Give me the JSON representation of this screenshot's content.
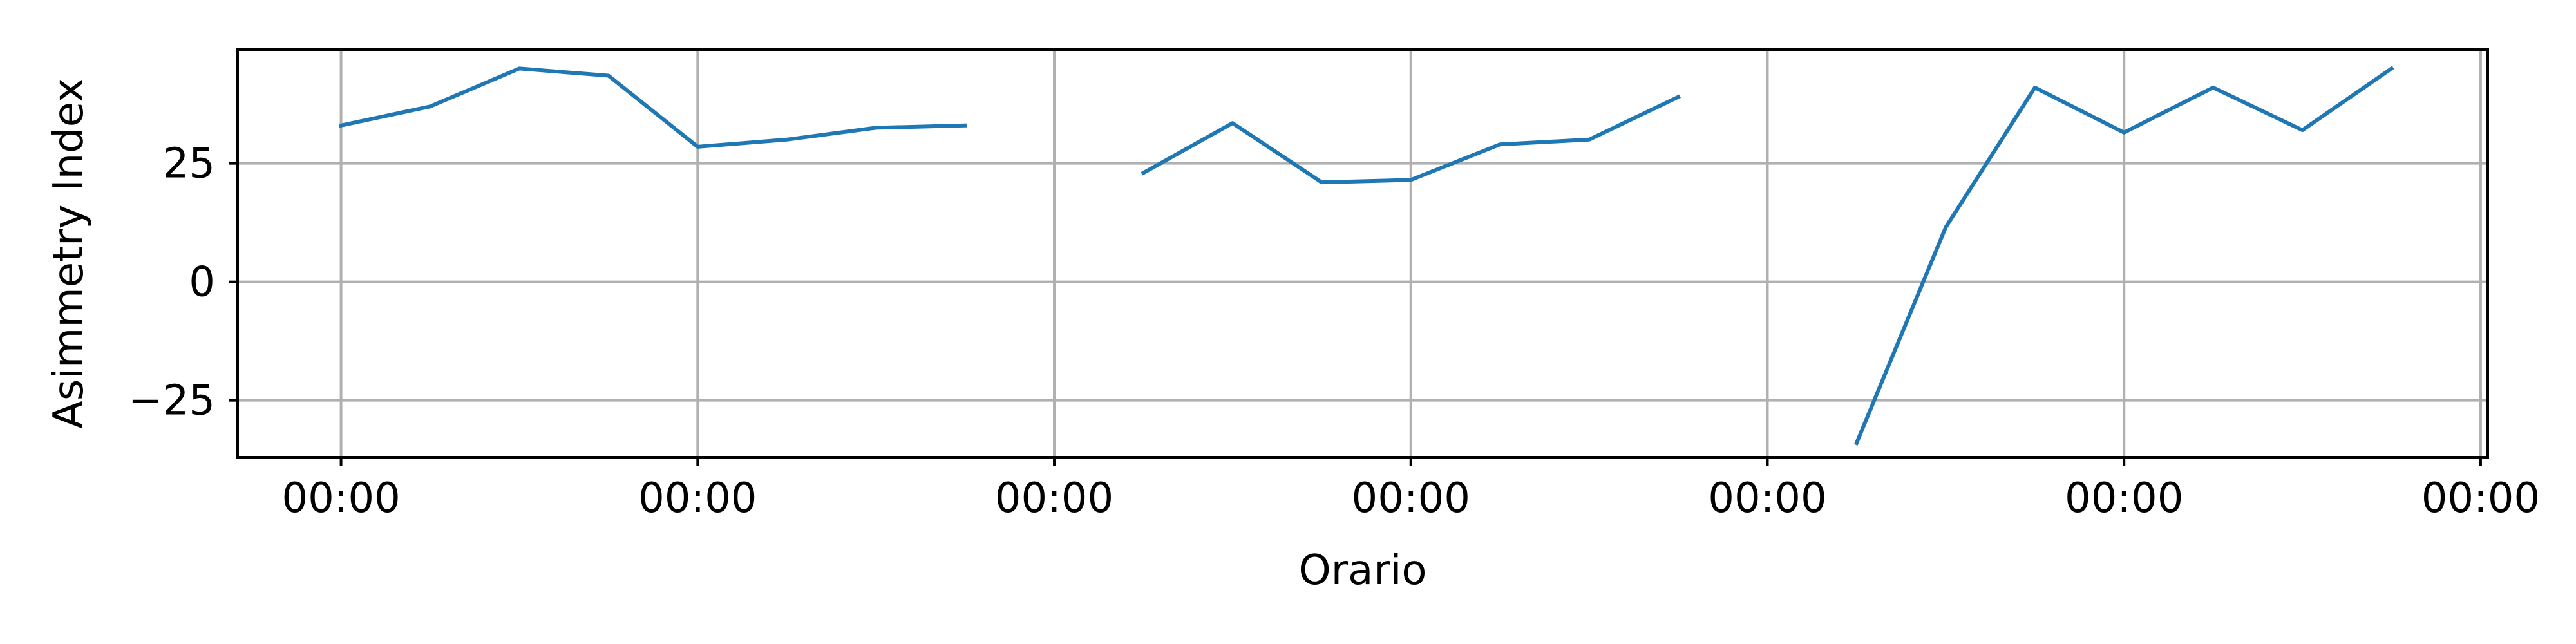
{
  "chart_data": {
    "type": "line",
    "title": "",
    "xlabel": "Orario",
    "ylabel": "Asimmetry Index",
    "x_tick_labels": [
      "00:00",
      "00:00",
      "00:00",
      "00:00",
      "00:00",
      "00:00",
      "00:00"
    ],
    "y_ticks": [
      -25,
      0,
      25
    ],
    "y_tick_labels": [
      "−25",
      "0",
      "25"
    ],
    "xlim": [
      -0.29,
      6.02
    ],
    "ylim": [
      -37,
      49
    ],
    "grid": true,
    "series": [
      {
        "color": "#1f77b4",
        "x": [
          0,
          0.25,
          0.5,
          0.75,
          1.0,
          1.25,
          1.5,
          1.75,
          2.0,
          2.25,
          2.5,
          2.75,
          3.0,
          3.25,
          3.5,
          3.75,
          4.0,
          4.25,
          4.5,
          4.75,
          5.0,
          5.25,
          5.5,
          5.75
        ],
        "y": [
          33,
          37,
          45,
          43.5,
          28.5,
          30,
          32.5,
          33,
          null,
          23,
          33.5,
          21,
          21.5,
          29,
          30,
          39,
          null,
          -34,
          11.5,
          41,
          31.5,
          41,
          32,
          45
        ]
      }
    ]
  }
}
